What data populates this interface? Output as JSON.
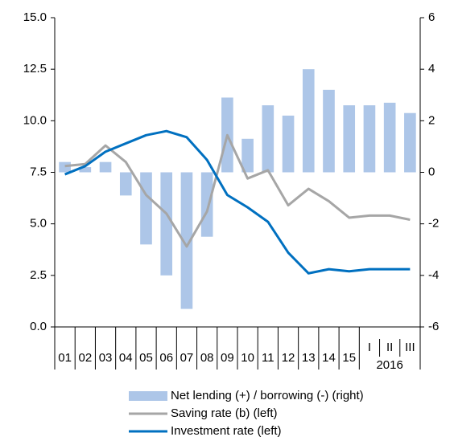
{
  "chart_data": {
    "type": "bar_line_combo",
    "categories": [
      "01",
      "02",
      "03",
      "04",
      "05",
      "06",
      "07",
      "08",
      "09",
      "10",
      "11",
      "12",
      "13",
      "14",
      "15",
      "I",
      "II",
      "III"
    ],
    "group_label": "2016",
    "series": [
      {
        "name": "Net lending (+) / borrowing (-) (right)",
        "type": "bar",
        "axis": "y2",
        "color": "#adc6e8",
        "values": [
          0.4,
          0.2,
          0.4,
          -0.9,
          -2.8,
          -4.0,
          -5.3,
          -2.5,
          2.9,
          1.3,
          2.6,
          2.2,
          4.0,
          3.2,
          2.6,
          2.6,
          2.7,
          2.3
        ]
      },
      {
        "name": "Saving rate (b) (left)",
        "type": "line",
        "axis": "y",
        "color": "#a6a6a6",
        "values": [
          7.8,
          7.9,
          8.8,
          8.0,
          6.4,
          5.5,
          3.9,
          5.6,
          9.3,
          7.2,
          7.6,
          5.9,
          6.7,
          6.1,
          5.3,
          5.4,
          5.4,
          5.2
        ]
      },
      {
        "name": "Investment rate (left)",
        "type": "line",
        "axis": "y",
        "color": "#0070c0",
        "values": [
          7.4,
          7.8,
          8.5,
          8.9,
          9.3,
          9.5,
          9.2,
          8.1,
          6.4,
          5.8,
          5.1,
          3.6,
          2.6,
          2.8,
          2.7,
          2.8,
          2.8,
          2.8
        ]
      }
    ],
    "ylim": [
      0,
      15
    ],
    "yticks": [
      {
        "value": 0,
        "label": "0.0"
      },
      {
        "value": 2.5,
        "label": "2.5"
      },
      {
        "value": 5,
        "label": "5.0"
      },
      {
        "value": 7.5,
        "label": "7.5"
      },
      {
        "value": 10,
        "label": "10.0"
      },
      {
        "value": 12.5,
        "label": "12.5"
      },
      {
        "value": 15,
        "label": "15.0"
      }
    ],
    "y2lim": [
      -6,
      6
    ],
    "y2ticks": [
      -6,
      -4,
      -2,
      0,
      2,
      4,
      6
    ],
    "legend": "bottom"
  }
}
